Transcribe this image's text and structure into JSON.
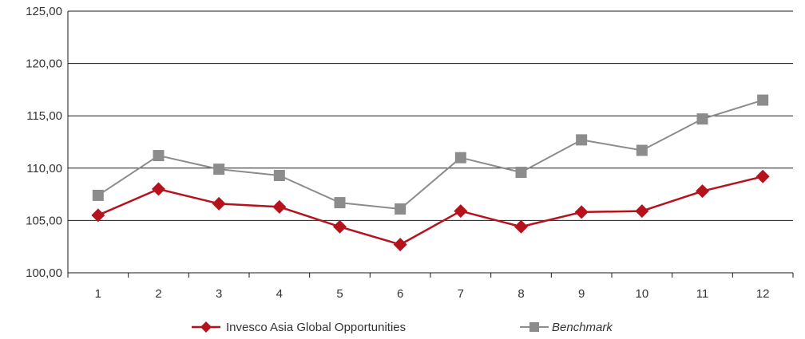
{
  "chart_data": {
    "type": "line",
    "categories": [
      "1",
      "2",
      "3",
      "4",
      "5",
      "6",
      "7",
      "8",
      "9",
      "10",
      "11",
      "12"
    ],
    "ylim": [
      100,
      125
    ],
    "yticks": [
      "100,00",
      "105,00",
      "110,00",
      "115,00",
      "120,00",
      "125,00"
    ],
    "grid": true,
    "legend": "bottom",
    "series": [
      {
        "name": "Invesco Asia Global Opportunities",
        "color": "#b5121b",
        "marker": "diamond",
        "values": [
          105.5,
          108.0,
          106.6,
          106.3,
          104.4,
          102.7,
          105.9,
          104.4,
          105.8,
          105.9,
          107.8,
          109.2
        ]
      },
      {
        "name": "Benchmark",
        "color": "#8c8c8c",
        "marker": "square",
        "values": [
          107.4,
          111.2,
          109.9,
          109.3,
          106.7,
          106.1,
          111.0,
          109.6,
          112.7,
          111.7,
          114.7,
          116.5
        ]
      }
    ]
  }
}
